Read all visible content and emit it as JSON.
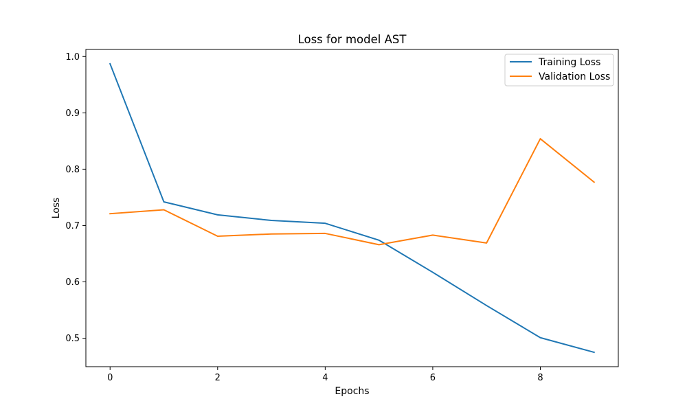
{
  "chart_data": {
    "type": "line",
    "title": "Loss for model AST",
    "xlabel": "Epochs",
    "ylabel": "Loss",
    "xlim": [
      -0.45,
      9.45
    ],
    "ylim": [
      0.4495,
      1.0125
    ],
    "xticks": [
      0,
      2,
      4,
      6,
      8
    ],
    "xtick_labels": [
      "0",
      "2",
      "4",
      "6",
      "8"
    ],
    "yticks": [
      0.5,
      0.6,
      0.7,
      0.8,
      0.9,
      1.0
    ],
    "ytick_labels": [
      "0.5",
      "0.6",
      "0.7",
      "0.8",
      "0.9",
      "1.0"
    ],
    "grid": false,
    "legend_position": "top-right",
    "x": [
      0,
      1,
      2,
      3,
      4,
      5,
      6,
      7,
      8,
      9
    ],
    "series": [
      {
        "name": "Training Loss",
        "color": "#1f77b4",
        "values": [
          0.987,
          0.742,
          0.719,
          0.709,
          0.704,
          0.674,
          0.617,
          0.558,
          0.501,
          0.475
        ]
      },
      {
        "name": "Validation Loss",
        "color": "#ff7f0e",
        "values": [
          0.721,
          0.728,
          0.681,
          0.685,
          0.686,
          0.666,
          0.683,
          0.669,
          0.854,
          0.777
        ]
      }
    ]
  }
}
